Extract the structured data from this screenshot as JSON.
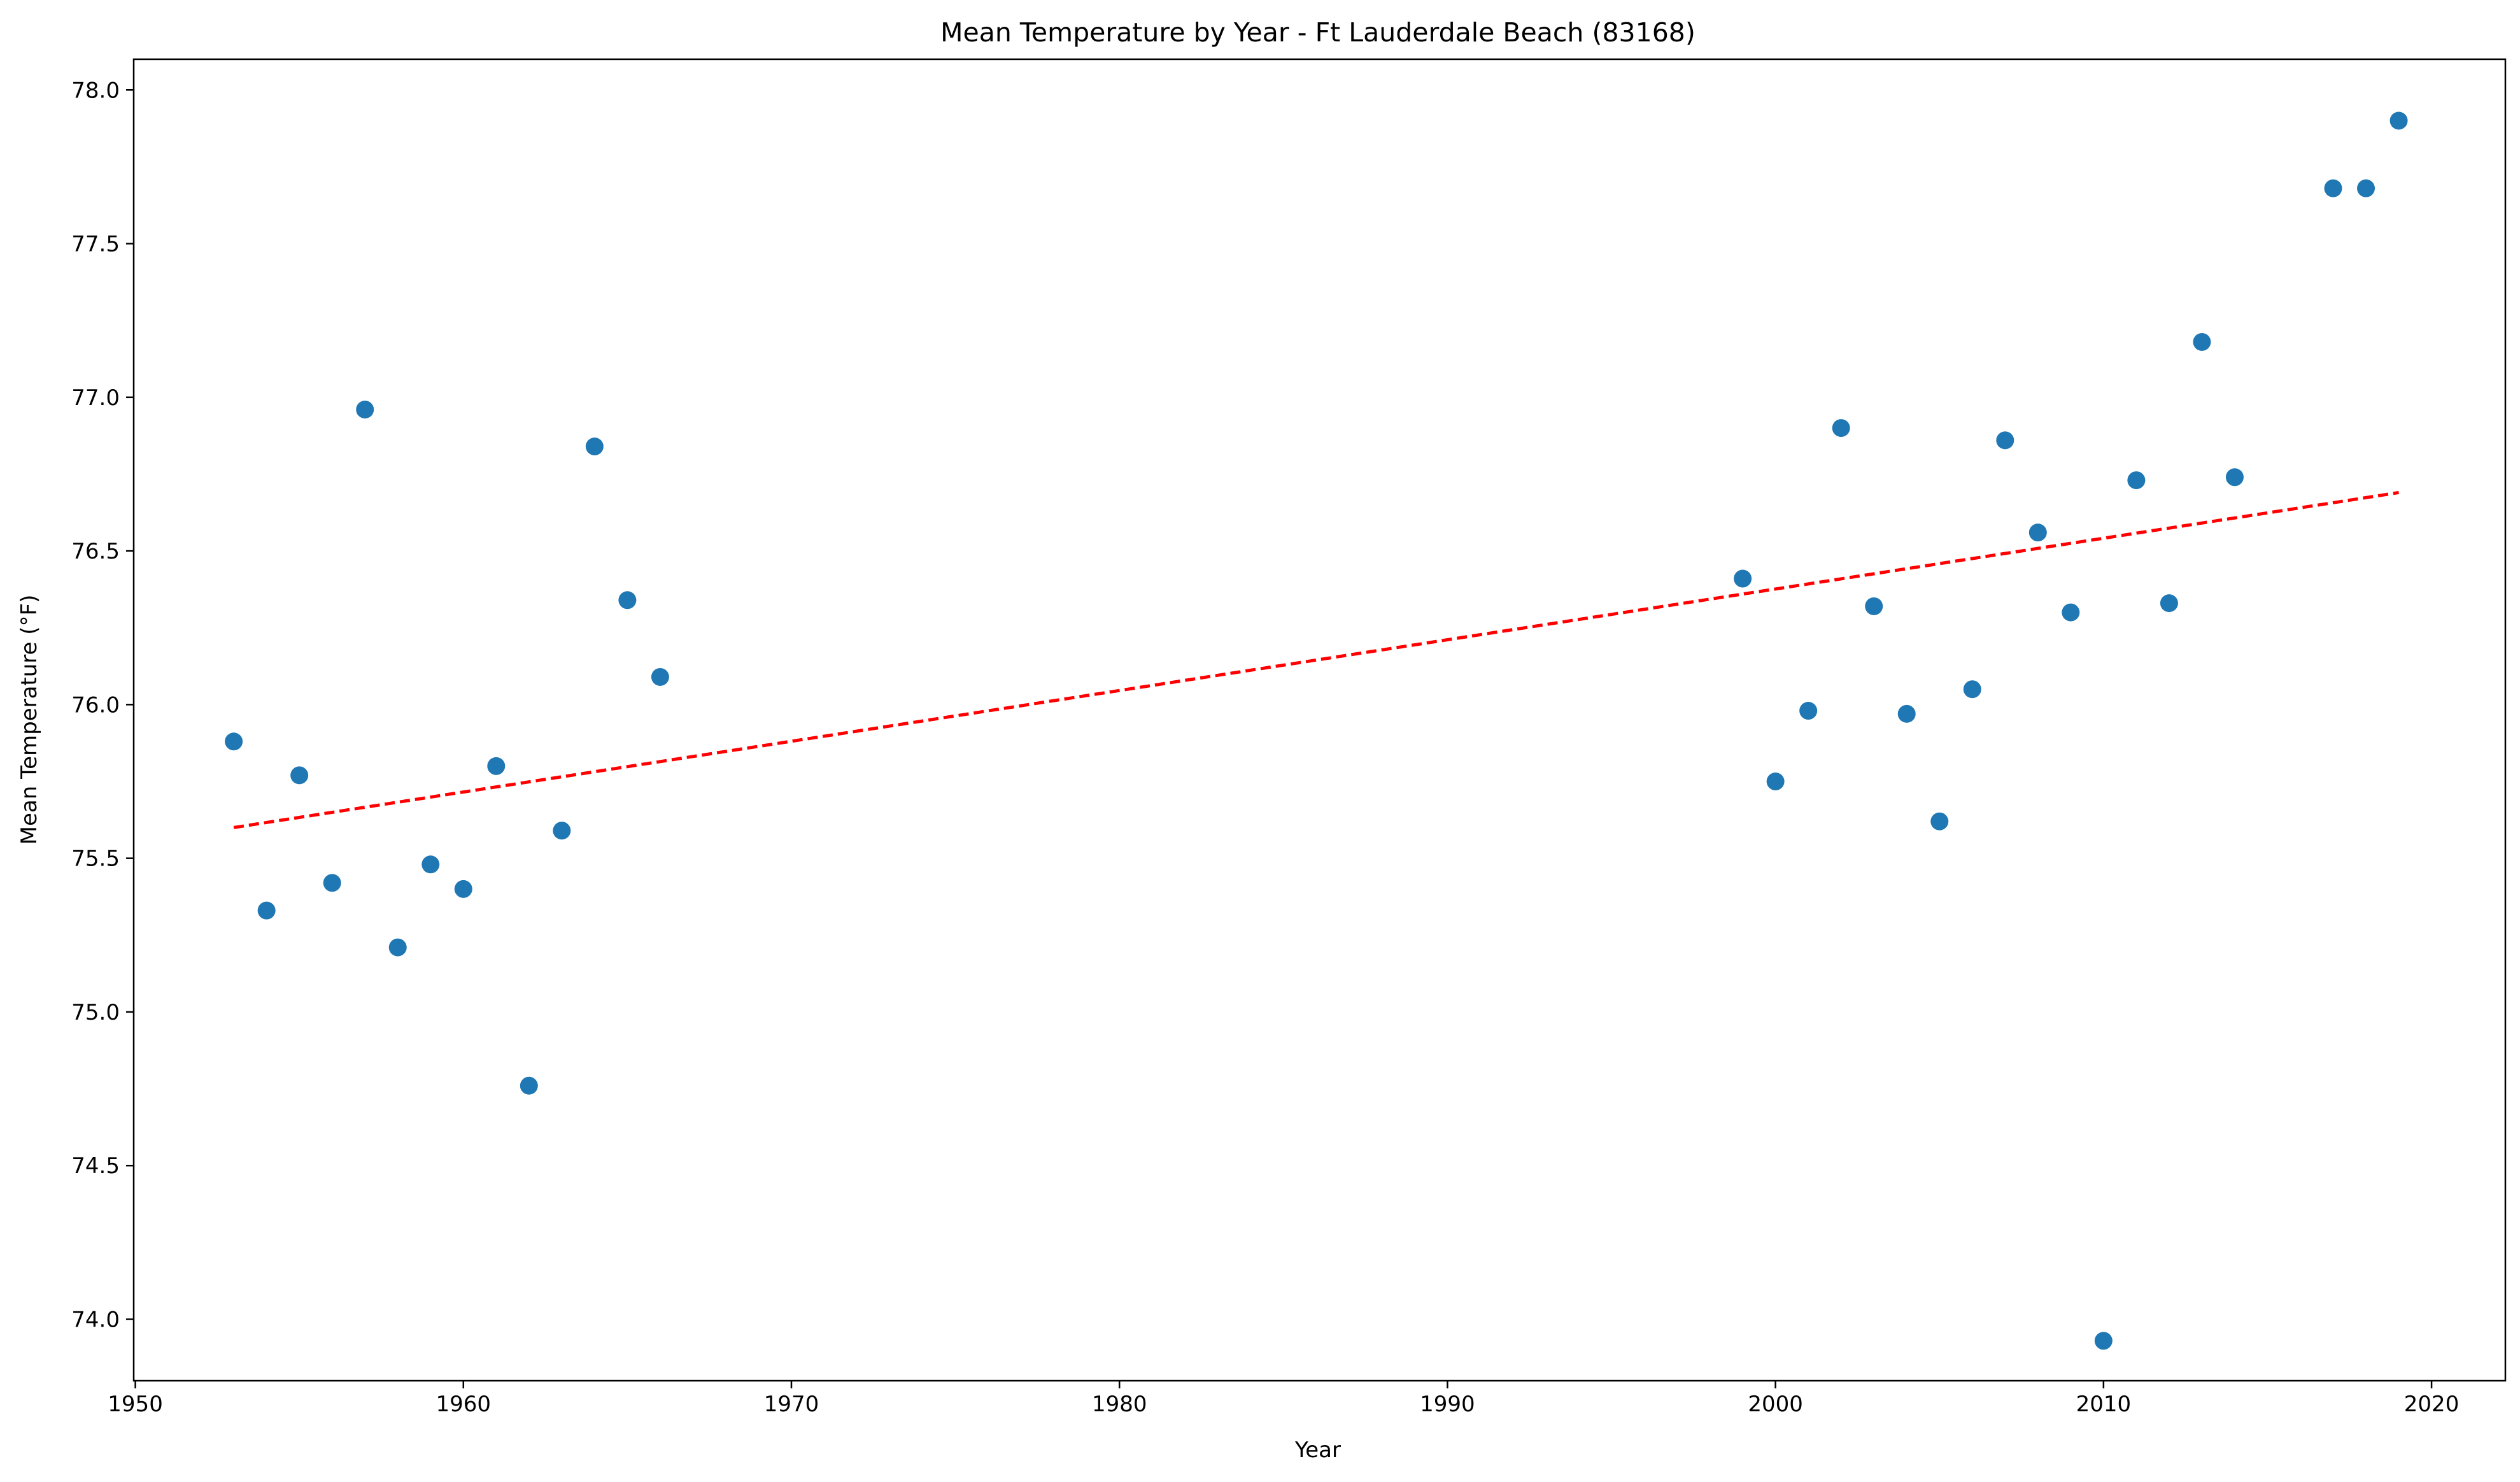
{
  "chart_data": {
    "type": "scatter",
    "title": "Mean Temperature by Year - Ft Lauderdale Beach (83168)",
    "xlabel": "Year",
    "ylabel": "Mean Temperature (°F)",
    "xlim": [
      1949.95,
      2022.25
    ],
    "ylim": [
      73.8,
      78.1
    ],
    "x_ticks": [
      1950,
      1960,
      1970,
      1980,
      1990,
      2000,
      2010,
      2020
    ],
    "y_ticks": [
      74.0,
      74.5,
      75.0,
      75.5,
      76.0,
      76.5,
      77.0,
      77.5,
      78.0
    ],
    "grid": false,
    "legend": "none",
    "series": [
      {
        "color": "#1f77b4",
        "marker": "circle",
        "points": [
          {
            "x": 1953,
            "y": 75.88
          },
          {
            "x": 1954,
            "y": 75.33
          },
          {
            "x": 1955,
            "y": 75.77
          },
          {
            "x": 1956,
            "y": 75.42
          },
          {
            "x": 1957,
            "y": 76.96
          },
          {
            "x": 1958,
            "y": 75.21
          },
          {
            "x": 1959,
            "y": 75.48
          },
          {
            "x": 1960,
            "y": 75.4
          },
          {
            "x": 1961,
            "y": 75.8
          },
          {
            "x": 1962,
            "y": 74.76
          },
          {
            "x": 1963,
            "y": 75.59
          },
          {
            "x": 1964,
            "y": 76.84
          },
          {
            "x": 1965,
            "y": 76.34
          },
          {
            "x": 1966,
            "y": 76.09
          },
          {
            "x": 1999,
            "y": 76.41
          },
          {
            "x": 2000,
            "y": 75.75
          },
          {
            "x": 2001,
            "y": 75.98
          },
          {
            "x": 2002,
            "y": 76.9
          },
          {
            "x": 2003,
            "y": 76.32
          },
          {
            "x": 2004,
            "y": 75.97
          },
          {
            "x": 2005,
            "y": 75.62
          },
          {
            "x": 2006,
            "y": 76.05
          },
          {
            "x": 2007,
            "y": 76.86
          },
          {
            "x": 2008,
            "y": 76.56
          },
          {
            "x": 2009,
            "y": 76.3
          },
          {
            "x": 2010,
            "y": 73.93
          },
          {
            "x": 2011,
            "y": 76.73
          },
          {
            "x": 2012,
            "y": 76.33
          },
          {
            "x": 2013,
            "y": 77.18
          },
          {
            "x": 2014,
            "y": 76.74
          },
          {
            "x": 2017,
            "y": 77.68
          },
          {
            "x": 2018,
            "y": 77.68
          },
          {
            "x": 2019,
            "y": 77.9
          }
        ]
      }
    ],
    "trendline": {
      "color": "#ff0000",
      "style": "dashed",
      "start": {
        "x": 1953,
        "y": 75.6
      },
      "end": {
        "x": 2019,
        "y": 76.69
      }
    }
  }
}
